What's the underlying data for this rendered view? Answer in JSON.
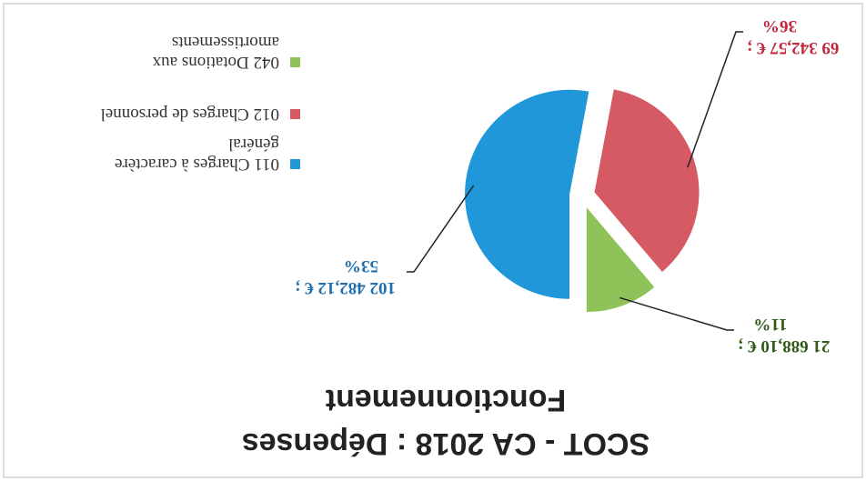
{
  "chart_data": {
    "type": "pie",
    "title": [
      "SCOT - CA 2018 : Dépenses",
      "Fonctionnement"
    ],
    "categories": [
      "011 Charges à caractère général",
      "012 Charges de personnel",
      "042 Dotations aux amortissements"
    ],
    "values": [
      102482.12,
      69342.57,
      21688.1
    ],
    "value_labels": [
      [
        "102 482,12 € ;",
        "53%"
      ],
      [
        "69 342,57 € ;",
        "36%"
      ],
      [
        "21 688,10 € ;",
        "11%"
      ]
    ],
    "colors": [
      "#1f97d8",
      "#d65a64",
      "#8fc35a"
    ],
    "label_colors": [
      "#1f6fb0",
      "#c0283e",
      "#2f5a18"
    ],
    "legend": "right"
  }
}
